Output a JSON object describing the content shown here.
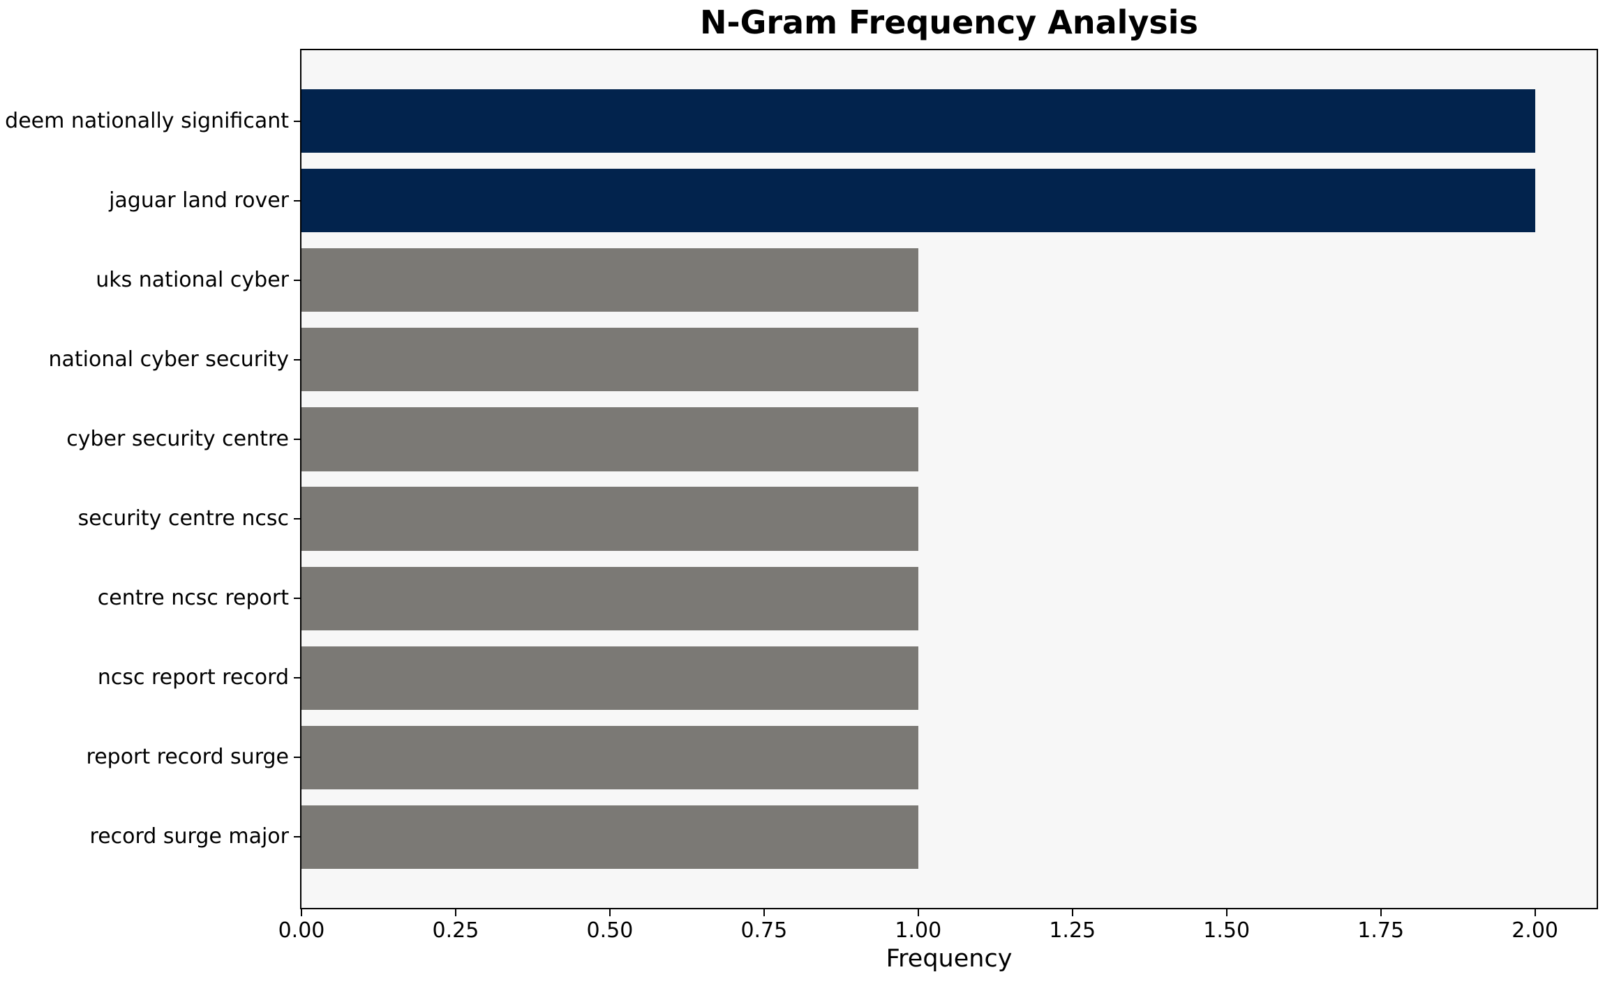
{
  "chart_data": {
    "type": "bar",
    "orientation": "horizontal",
    "title": "N-Gram Frequency Analysis",
    "xlabel": "Frequency",
    "ylabel": "",
    "categories": [
      "deem nationally significant",
      "jaguar land rover",
      "uks national cyber",
      "national cyber security",
      "cyber security centre",
      "security centre ncsc",
      "centre ncsc report",
      "ncsc report record",
      "report record surge",
      "record surge major"
    ],
    "values": [
      2,
      2,
      1,
      1,
      1,
      1,
      1,
      1,
      1,
      1
    ],
    "xlim": [
      0,
      2.1
    ],
    "xticks": [
      0,
      0.25,
      0.5,
      0.75,
      1.0,
      1.25,
      1.5,
      1.75,
      2.0
    ],
    "xtick_labels": [
      "0.00",
      "0.25",
      "0.50",
      "0.75",
      "1.00",
      "1.25",
      "1.50",
      "1.75",
      "2.00"
    ],
    "grid": false,
    "legend": null,
    "bar_colors": [
      "#02234d",
      "#02234d",
      "#7b7975",
      "#7b7975",
      "#7b7975",
      "#7b7975",
      "#7b7975",
      "#7b7975",
      "#7b7975",
      "#7b7975"
    ],
    "colors": {
      "highlight_bar": "#02234d",
      "default_bar": "#7b7975",
      "plot_background": "#f7f7f7",
      "figure_background": "#ffffff",
      "axis": "#000000",
      "text": "#000000"
    }
  }
}
